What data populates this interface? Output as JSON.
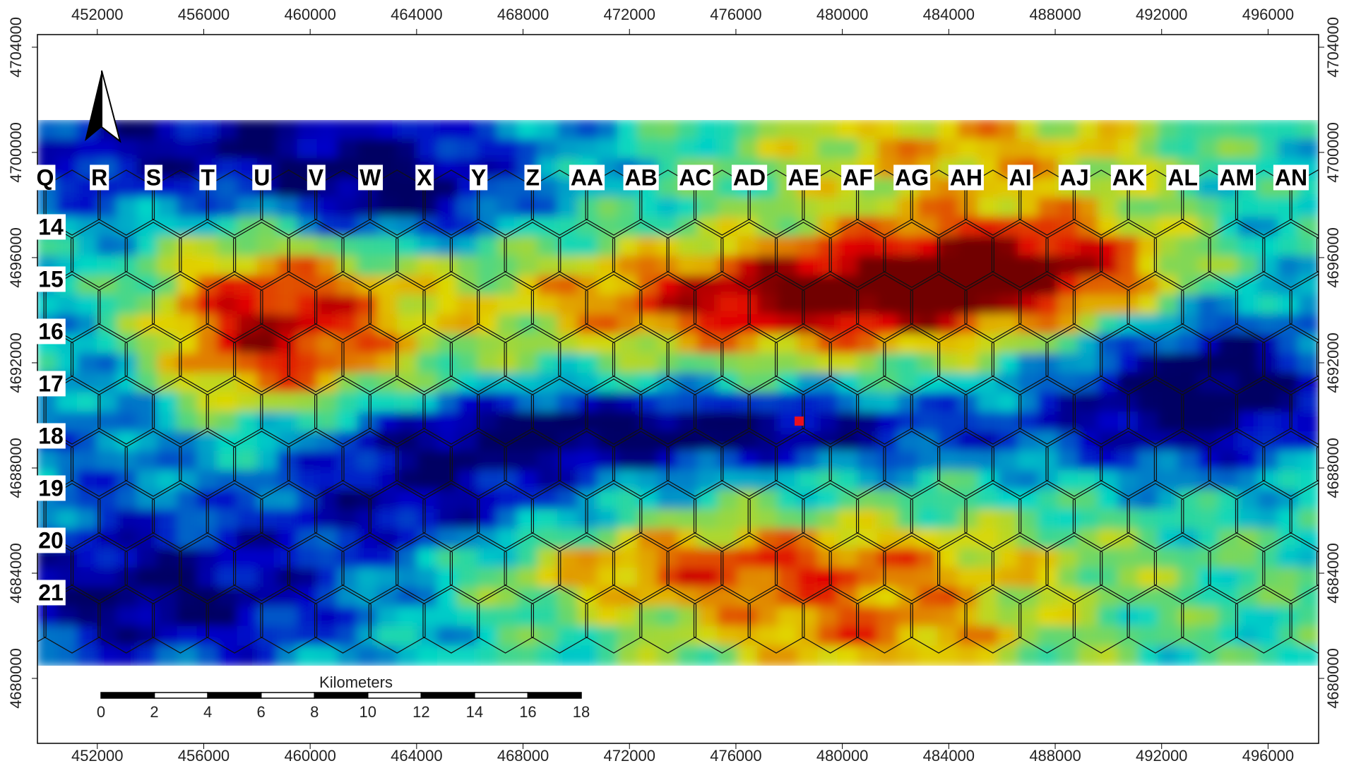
{
  "map": {
    "x_axis": {
      "xlim": [
        449750,
        497900
      ],
      "ticks": [
        452000,
        456000,
        460000,
        464000,
        468000,
        472000,
        476000,
        480000,
        484000,
        488000,
        492000,
        496000
      ]
    },
    "y_axis": {
      "ylim": [
        4677530,
        4704480
      ],
      "ticks": [
        4680000,
        4684000,
        4688000,
        4692000,
        4696000,
        4700000,
        4704000
      ]
    },
    "columns": [
      "Q",
      "R",
      "S",
      "T",
      "U",
      "V",
      "W",
      "X",
      "Y",
      "Z",
      "AA",
      "AB",
      "AC",
      "AD",
      "AE",
      "AF",
      "AG",
      "AH",
      "AI",
      "AJ",
      "AK",
      "AL",
      "AM",
      "AN"
    ],
    "rows": [
      "14",
      "15",
      "16",
      "17",
      "18",
      "19",
      "20",
      "21"
    ],
    "scale_bar": {
      "title": "Kilometers",
      "ticks": [
        0,
        2,
        4,
        6,
        8,
        10,
        12,
        14,
        16,
        18
      ]
    }
  }
}
